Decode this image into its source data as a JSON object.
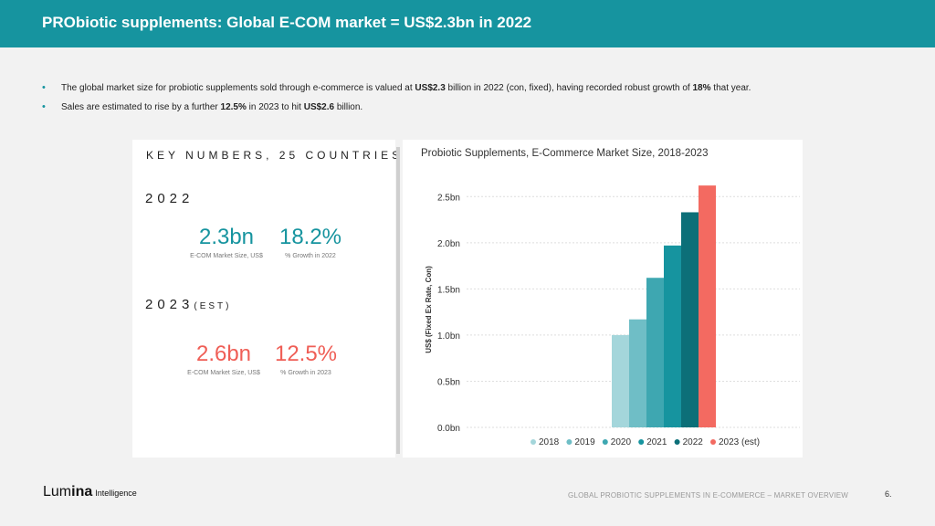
{
  "header": {
    "title": "PRObiotic supplements: Global E-COM market = US$2.3bn in 2022"
  },
  "bullets": [
    {
      "t1": "The global market size for probiotic supplements sold through e-commerce is valued at ",
      "b1": "US$2.3",
      "t2": " billion in 2022 (con, fixed), having recorded robust growth of ",
      "b2": "18%",
      "t3": " that year."
    },
    {
      "t1": "Sales are estimated to rise by a further ",
      "b1": "12.5%",
      "t2": " in 2023 to hit ",
      "b2": "US$2.6",
      "t3": " billion."
    }
  ],
  "key_numbers": {
    "title": "KEY NUMBERS, 25 COUNTRIES",
    "y2022": {
      "label": "2022",
      "market_value": "2.3bn",
      "market_caption": "E-COM Market Size, US$",
      "growth_value": "18.2%",
      "growth_caption": "% Growth in 2022"
    },
    "y2023": {
      "label": "2023",
      "suffix": "(EST)",
      "market_value": "2.6bn",
      "market_caption": "E-COM Market Size, US$",
      "growth_value": "12.5%",
      "growth_caption": "% Growth in 2023"
    }
  },
  "chart_data": {
    "type": "bar",
    "title": "Probiotic Supplements, E-Commerce Market Size, 2018-2023",
    "ylabel": "US$ (Fixed Ex Rate, Con)",
    "categories": [
      "2018",
      "2019",
      "2020",
      "2021",
      "2022",
      "2023 (est)"
    ],
    "values": [
      1.0,
      1.17,
      1.62,
      1.97,
      2.33,
      2.62
    ],
    "colors": [
      "#a4d6db",
      "#6fbec6",
      "#3ea7b1",
      "#16949f",
      "#0c6f78",
      "#f36a61"
    ],
    "ylim": [
      0,
      2.75
    ],
    "yticks": [
      0,
      0.5,
      1.0,
      1.5,
      2.0,
      2.5
    ],
    "ytick_labels": [
      "0.0bn",
      "0.5bn",
      "1.0bn",
      "1.5bn",
      "2.0bn",
      "2.5bn"
    ],
    "grid": true,
    "legend": "bottom"
  },
  "footer": {
    "logo_lum": "Lum",
    "logo_ina": "ina",
    "logo_intelligence": "Intelligence",
    "text": "GLOBAL PROBIOTIC SUPPLEMENTS IN E-COMMERCE – MARKET OVERVIEW",
    "page": "6."
  }
}
